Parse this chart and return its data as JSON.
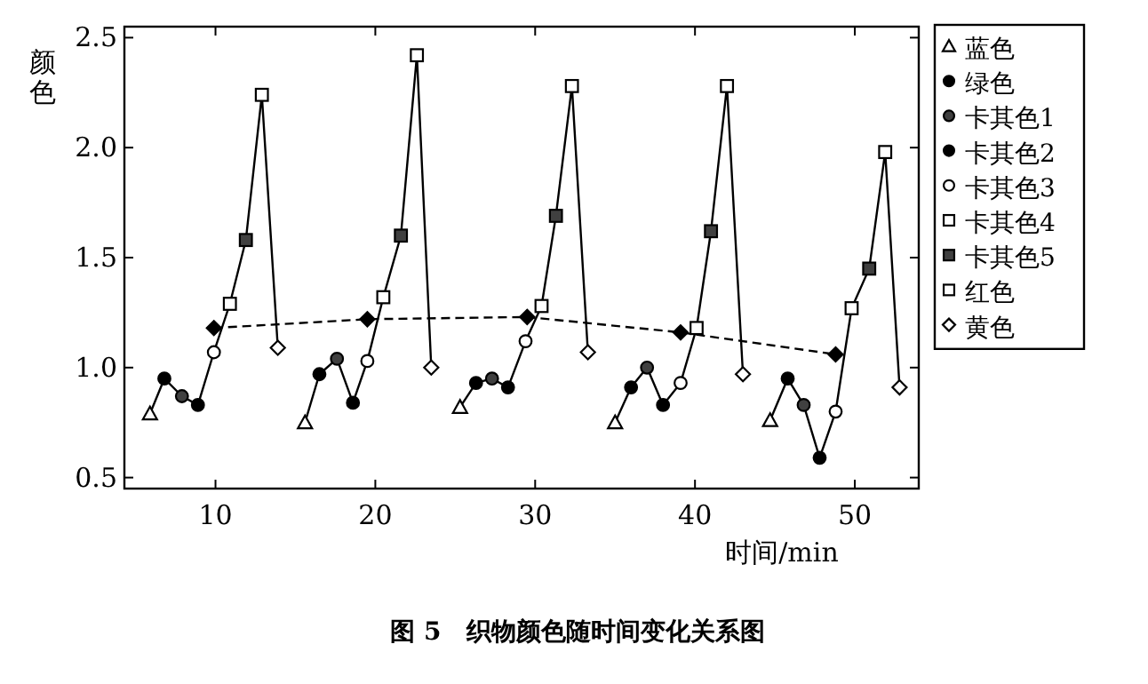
{
  "chart_data": {
    "type": "scatter",
    "xlabel": "时间/min",
    "ylabel": "颜色",
    "annotations": [
      "图 5　织物颜色随时间变化关系图"
    ],
    "xlim": [
      4.3,
      54
    ],
    "ylim": [
      0.45,
      2.55
    ],
    "xticks": [
      10,
      20,
      30,
      40,
      50
    ],
    "yticks": [
      0.5,
      {
        "value": 1,
        "label": "1.0"
      },
      1.5,
      {
        "value": 2,
        "label": "2.0"
      },
      2.5
    ],
    "legend": "right",
    "series": [
      {
        "name": "蓝色",
        "type": "scatter",
        "marker": "triangle",
        "color": "#ffffff",
        "x": [
          5.9,
          15.6,
          25.3,
          35.0,
          44.7
        ],
        "values": [
          0.79,
          0.75,
          0.82,
          0.75,
          0.76
        ]
      },
      {
        "name": "绿色",
        "type": "scatter",
        "marker": "circle",
        "color": "#000000",
        "x": [
          6.8,
          16.5,
          26.3,
          36.0,
          45.8
        ],
        "values": [
          0.95,
          0.97,
          0.93,
          0.91,
          0.95
        ]
      },
      {
        "name": "卡其色1",
        "type": "scatter",
        "marker": "circle",
        "color": "#404040",
        "x": [
          7.9,
          17.6,
          27.3,
          37.0,
          46.8
        ],
        "values": [
          0.87,
          1.04,
          0.95,
          1.0,
          0.83
        ]
      },
      {
        "name": "卡其色2",
        "type": "scatter",
        "marker": "circle",
        "color": "#000000",
        "x": [
          8.9,
          18.6,
          28.3,
          38.0,
          47.8
        ],
        "values": [
          0.83,
          0.84,
          0.91,
          0.83,
          0.59
        ]
      },
      {
        "name": "卡其色3",
        "type": "scatter",
        "marker": "circle",
        "color": "#ffffff",
        "x": [
          9.9,
          19.5,
          29.4,
          39.1,
          48.8
        ],
        "values": [
          1.07,
          1.03,
          1.12,
          0.93,
          0.8
        ]
      },
      {
        "name": "卡其色4",
        "type": "scatter",
        "marker": "square",
        "color": "#ffffff",
        "x": [
          10.9,
          20.5,
          30.4,
          40.1,
          49.8
        ],
        "values": [
          1.29,
          1.32,
          1.28,
          1.18,
          1.27
        ]
      },
      {
        "name": "卡其色5",
        "type": "scatter",
        "marker": "square",
        "color": "#404040",
        "x": [
          11.9,
          21.6,
          31.3,
          41.0,
          50.9
        ],
        "values": [
          1.58,
          1.6,
          1.69,
          1.62,
          1.45
        ]
      },
      {
        "name": "红色",
        "type": "scatter",
        "marker": "square",
        "color": "#ffffff",
        "x": [
          12.9,
          22.6,
          32.3,
          42.0,
          51.9
        ],
        "values": [
          2.24,
          2.42,
          2.28,
          2.28,
          1.98
        ]
      },
      {
        "name": "黄色",
        "type": "scatter",
        "marker": "diamond",
        "color": "#ffffff",
        "x": [
          13.9,
          23.5,
          33.3,
          43.0,
          52.8
        ],
        "values": [
          1.09,
          1.0,
          1.07,
          0.97,
          0.91
        ]
      },
      {
        "type": "line",
        "marker": "none",
        "line_style": "solid",
        "color": "#000000",
        "x": [
          5.9,
          6.8,
          7.9,
          8.9,
          9.9,
          10.9,
          11.9,
          12.9,
          13.9
        ],
        "values": [
          0.79,
          0.95,
          0.87,
          0.83,
          1.07,
          1.29,
          1.58,
          2.24,
          1.09
        ]
      },
      {
        "type": "line",
        "marker": "none",
        "line_style": "solid",
        "color": "#000000",
        "x": [
          15.6,
          16.5,
          17.6,
          18.6,
          19.5,
          20.5,
          21.6,
          22.6,
          23.5
        ],
        "values": [
          0.75,
          0.97,
          1.04,
          0.84,
          1.03,
          1.32,
          1.6,
          2.42,
          1.0
        ]
      },
      {
        "type": "line",
        "marker": "none",
        "line_style": "solid",
        "color": "#000000",
        "x": [
          25.3,
          26.3,
          27.3,
          28.3,
          29.4,
          30.4,
          31.3,
          32.3,
          33.3
        ],
        "values": [
          0.82,
          0.93,
          0.95,
          0.91,
          1.12,
          1.28,
          1.69,
          2.28,
          1.07
        ]
      },
      {
        "type": "line",
        "marker": "none",
        "line_style": "solid",
        "color": "#000000",
        "x": [
          35.0,
          36.0,
          37.0,
          38.0,
          39.1,
          40.1,
          41.0,
          42.0,
          43.0
        ],
        "values": [
          0.75,
          0.91,
          1.0,
          0.83,
          0.93,
          1.18,
          1.62,
          2.28,
          0.97
        ]
      },
      {
        "type": "line",
        "marker": "none",
        "line_style": "solid",
        "color": "#000000",
        "x": [
          44.7,
          45.8,
          46.8,
          47.8,
          48.8,
          49.8,
          50.9,
          51.9,
          52.8
        ],
        "values": [
          0.76,
          0.95,
          0.83,
          0.59,
          0.8,
          1.27,
          1.45,
          1.98,
          0.91
        ]
      },
      {
        "type": "line",
        "marker": "diamond",
        "line_style": "dashed",
        "color": "#000000",
        "x": [
          9.9,
          19.5,
          29.5,
          39.1,
          48.8
        ],
        "values": [
          1.18,
          1.22,
          1.23,
          1.16,
          1.06
        ]
      }
    ]
  }
}
